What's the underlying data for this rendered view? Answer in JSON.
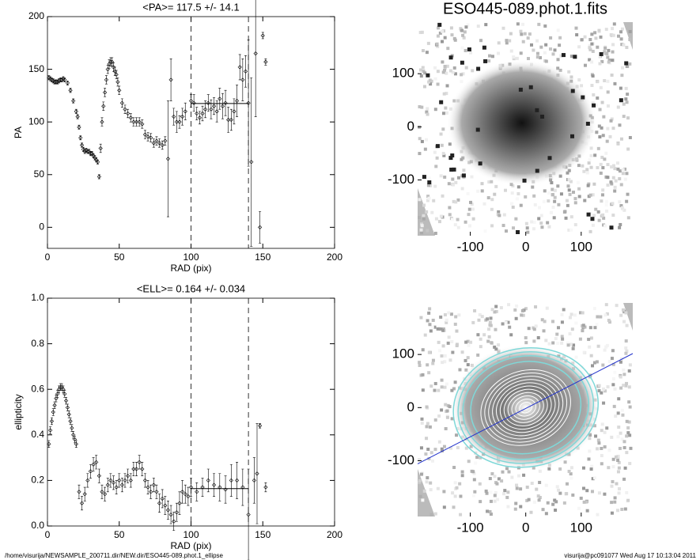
{
  "chart_data": [
    {
      "type": "errorbar",
      "title": "<PA>= 117.5 +/-  14.1",
      "x_label": "RAD (pix)",
      "y_label": "PA",
      "xlim": [
        0,
        200
      ],
      "ylim": [
        -20,
        200
      ],
      "xticks": [
        0,
        50,
        100,
        150,
        200
      ],
      "yticks": [
        0,
        50,
        100,
        150,
        200
      ],
      "vlines": [
        100,
        140
      ],
      "mean_line": {
        "x": [
          100,
          140
        ],
        "y": 117.5
      },
      "x": [
        1,
        2,
        3,
        4,
        5,
        6,
        7,
        8,
        9,
        10,
        11,
        12,
        14,
        16,
        18,
        20,
        21,
        22,
        23,
        24,
        25,
        26,
        27,
        28,
        29,
        30,
        31,
        32,
        33,
        34,
        35,
        36,
        37,
        38,
        39,
        40,
        41,
        42,
        43,
        44,
        45,
        46,
        47,
        48,
        49,
        50,
        52,
        54,
        56,
        58,
        60,
        62,
        64,
        66,
        68,
        70,
        72,
        74,
        76,
        78,
        80,
        82,
        84,
        86,
        88,
        90,
        92,
        94,
        96,
        100,
        102,
        104,
        106,
        108,
        110,
        112,
        114,
        116,
        118,
        120,
        122,
        124,
        126,
        128,
        130,
        132,
        134,
        136,
        138,
        140,
        142,
        145,
        148,
        150,
        152
      ],
      "values": [
        142,
        141,
        140,
        139,
        138,
        138,
        138,
        139,
        140,
        140,
        141,
        140,
        137,
        130,
        120,
        110,
        105,
        95,
        85,
        78,
        74,
        72,
        73,
        72,
        72,
        70,
        70,
        68,
        66,
        64,
        62,
        48,
        75,
        100,
        115,
        128,
        140,
        150,
        155,
        157,
        157,
        152,
        148,
        145,
        138,
        130,
        118,
        112,
        108,
        104,
        100,
        100,
        100,
        98,
        88,
        86,
        85,
        80,
        82,
        80,
        78,
        82,
        65,
        140,
        105,
        100,
        100,
        105,
        110,
        120,
        118,
        108,
        104,
        108,
        112,
        118,
        112,
        115,
        110,
        122,
        115,
        118,
        102,
        102,
        110,
        120,
        152,
        140,
        148,
        118,
        62,
        165,
        0,
        182,
        157
      ],
      "errors": [
        2,
        2,
        2,
        2,
        2,
        2,
        2,
        2,
        2,
        2,
        2,
        2,
        2,
        2,
        2,
        2,
        2,
        2,
        2,
        2,
        2,
        2,
        2,
        2,
        2,
        2,
        2,
        2,
        2,
        2,
        2,
        2,
        4,
        4,
        4,
        4,
        4,
        4,
        4,
        4,
        4,
        4,
        4,
        4,
        4,
        4,
        4,
        4,
        4,
        4,
        4,
        4,
        4,
        4,
        4,
        4,
        4,
        4,
        4,
        4,
        4,
        4,
        55,
        20,
        8,
        10,
        6,
        8,
        8,
        6,
        8,
        6,
        6,
        7,
        8,
        8,
        9,
        8,
        10,
        10,
        12,
        12,
        12,
        10,
        12,
        15,
        12,
        20,
        15,
        60,
        80,
        60,
        15,
        3,
        3
      ]
    },
    {
      "type": "errorbar",
      "title": "<ELL>= 0.164 +/-  0.034",
      "x_label": "RAD (pix)",
      "y_label": "ellipticity",
      "xlim": [
        0,
        200
      ],
      "ylim": [
        0,
        1
      ],
      "xticks": [
        0,
        50,
        100,
        150,
        200
      ],
      "yticks": [
        {
          "value": 0,
          "label": "0.0"
        },
        0.2,
        0.4,
        0.6,
        0.8,
        {
          "value": 1,
          "label": "1.0"
        }
      ],
      "vlines": [
        100,
        140
      ],
      "mean_line": {
        "x": [
          100,
          140
        ],
        "y": 0.164
      },
      "x": [
        1,
        2,
        3,
        4,
        5,
        6,
        7,
        8,
        9,
        10,
        11,
        12,
        13,
        14,
        15,
        16,
        17,
        18,
        19,
        20,
        22,
        24,
        26,
        28,
        30,
        32,
        34,
        36,
        38,
        40,
        42,
        44,
        46,
        48,
        50,
        52,
        54,
        56,
        58,
        60,
        62,
        64,
        66,
        68,
        70,
        72,
        74,
        76,
        78,
        80,
        82,
        84,
        86,
        88,
        90,
        92,
        94,
        96,
        98,
        100,
        104,
        108,
        112,
        116,
        120,
        124,
        128,
        132,
        136,
        140,
        144,
        146,
        148,
        152
      ],
      "values": [
        0.36,
        0.42,
        0.46,
        0.5,
        0.53,
        0.56,
        0.58,
        0.6,
        0.61,
        0.61,
        0.6,
        0.58,
        0.55,
        0.52,
        0.49,
        0.46,
        0.43,
        0.4,
        0.38,
        0.36,
        0.15,
        0.1,
        0.14,
        0.2,
        0.24,
        0.27,
        0.28,
        0.22,
        0.15,
        0.14,
        0.18,
        0.2,
        0.19,
        0.17,
        0.2,
        0.18,
        0.2,
        0.22,
        0.2,
        0.25,
        0.25,
        0.28,
        0.25,
        0.2,
        0.17,
        0.15,
        0.18,
        0.15,
        0.1,
        0.12,
        0.09,
        0.07,
        0.05,
        0.02,
        0.06,
        0.1,
        0.15,
        0.14,
        0.13,
        0.17,
        0.15,
        0.17,
        0.2,
        0.18,
        0.17,
        0.16,
        0.2,
        0.2,
        0.17,
        0.05,
        0.2,
        0.23,
        0.44,
        0.17
      ],
      "errors": [
        0.015,
        0.015,
        0.015,
        0.015,
        0.015,
        0.015,
        0.015,
        0.015,
        0.015,
        0.015,
        0.015,
        0.015,
        0.015,
        0.015,
        0.015,
        0.015,
        0.015,
        0.015,
        0.015,
        0.015,
        0.03,
        0.03,
        0.03,
        0.03,
        0.03,
        0.03,
        0.03,
        0.03,
        0.03,
        0.03,
        0.03,
        0.03,
        0.03,
        0.03,
        0.03,
        0.03,
        0.03,
        0.03,
        0.03,
        0.03,
        0.03,
        0.03,
        0.03,
        0.03,
        0.03,
        0.03,
        0.03,
        0.03,
        0.04,
        0.04,
        0.04,
        0.04,
        0.04,
        0.04,
        0.04,
        0.05,
        0.05,
        0.04,
        0.04,
        0.04,
        0.04,
        0.04,
        0.05,
        0.05,
        0.06,
        0.06,
        0.07,
        0.08,
        0.08,
        0.2,
        0.1,
        0.22,
        0.01,
        0.02
      ]
    },
    {
      "type": "image",
      "title": "ESO445-089.phot.1.fits",
      "xlim": [
        -195,
        193
      ],
      "ylim": [
        -205,
        197
      ],
      "xticks": [
        -100,
        0,
        100
      ],
      "yticks": [
        -100,
        0,
        100
      ]
    },
    {
      "type": "image",
      "xlim": [
        -195,
        193
      ],
      "ylim": [
        -205,
        197
      ],
      "xticks": [
        -100,
        0,
        100
      ],
      "yticks": [
        -100,
        0,
        100
      ]
    }
  ],
  "footer": {
    "left": "/home/visurija/NEWSAMPLE_200711.dir/NEW.dir/ESO445-089.phot.1_ellipse",
    "right": "visurija@pc091077  Wed Aug 17 10:13:04 2011"
  }
}
